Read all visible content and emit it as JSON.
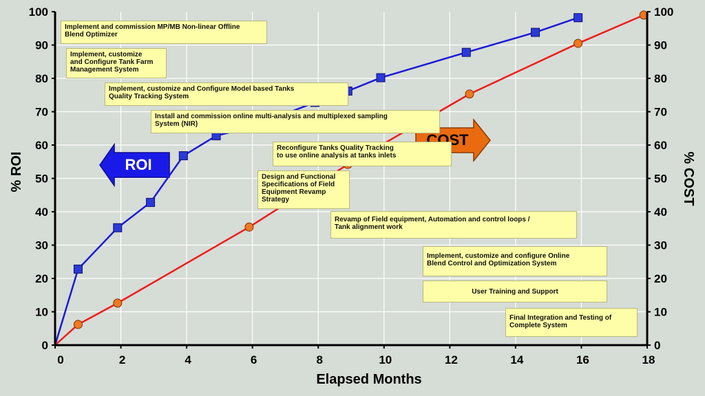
{
  "chart_data": {
    "type": "line",
    "xlabel": "Elapsed Months",
    "ylabel_left": "% ROI",
    "ylabel_right": "% COST",
    "xlim": [
      0,
      18
    ],
    "ylim": [
      0,
      100
    ],
    "x_ticks": [
      0,
      2,
      4,
      6,
      8,
      10,
      12,
      14,
      16,
      18
    ],
    "y_ticks": [
      0,
      10,
      20,
      30,
      40,
      50,
      60,
      70,
      80,
      90,
      100
    ],
    "grid": true,
    "series": [
      {
        "name": "ROI",
        "color": "#1a1ad8",
        "marker": "square",
        "marker_color": "#2a3ad8",
        "x": [
          0,
          0.7,
          1.9,
          2.9,
          3.9,
          4.9,
          5.9,
          7.9,
          8.9,
          9.9,
          12.5,
          14.6,
          15.9
        ],
        "y": [
          0,
          22.8,
          35.2,
          42.8,
          56.8,
          62.8,
          65.2,
          72.8,
          76.2,
          80.2,
          87.8,
          93.8,
          98.2
        ]
      },
      {
        "name": "COST",
        "color": "#ee1c1c",
        "marker": "circle",
        "marker_color": "#f07820",
        "x": [
          0,
          0.7,
          1.9,
          5.9,
          8.9,
          12.6,
          15.9,
          17.9
        ],
        "y": [
          0,
          6.2,
          12.6,
          35.4,
          54.2,
          75.3,
          90.5,
          99.0
        ]
      }
    ],
    "arrow_labels": {
      "roi": "ROI",
      "cost": "COST",
      "roi_color": "#1a1ae8",
      "cost_color": "#ea6a10"
    },
    "annotations": [
      "Implement and commission MP/MB Non-linear Offline\nBlend Optimizer",
      "Implement, customize\nand Configure Tank Farm\nManagement System",
      "Implement, customize and Configure Model based Tanks\nQuality Tracking System",
      "Install and commission online multi-analysis and multiplexed sampling\nSystem (NIR)",
      "Reconfigure  Tanks  Quality  Tracking\nto use online analysis at tanks inlets",
      "Design and Functional\nSpecifications of Field\nEquipment Revamp\nStrategy",
      "Revamp of Field equipment, Automation and control loops /\nTank alignment work",
      "Implement, customize and configure Online\nBlend Control and Optimization System",
      "User Training and Support",
      "Final Integration and Testing of\nComplete System"
    ]
  }
}
